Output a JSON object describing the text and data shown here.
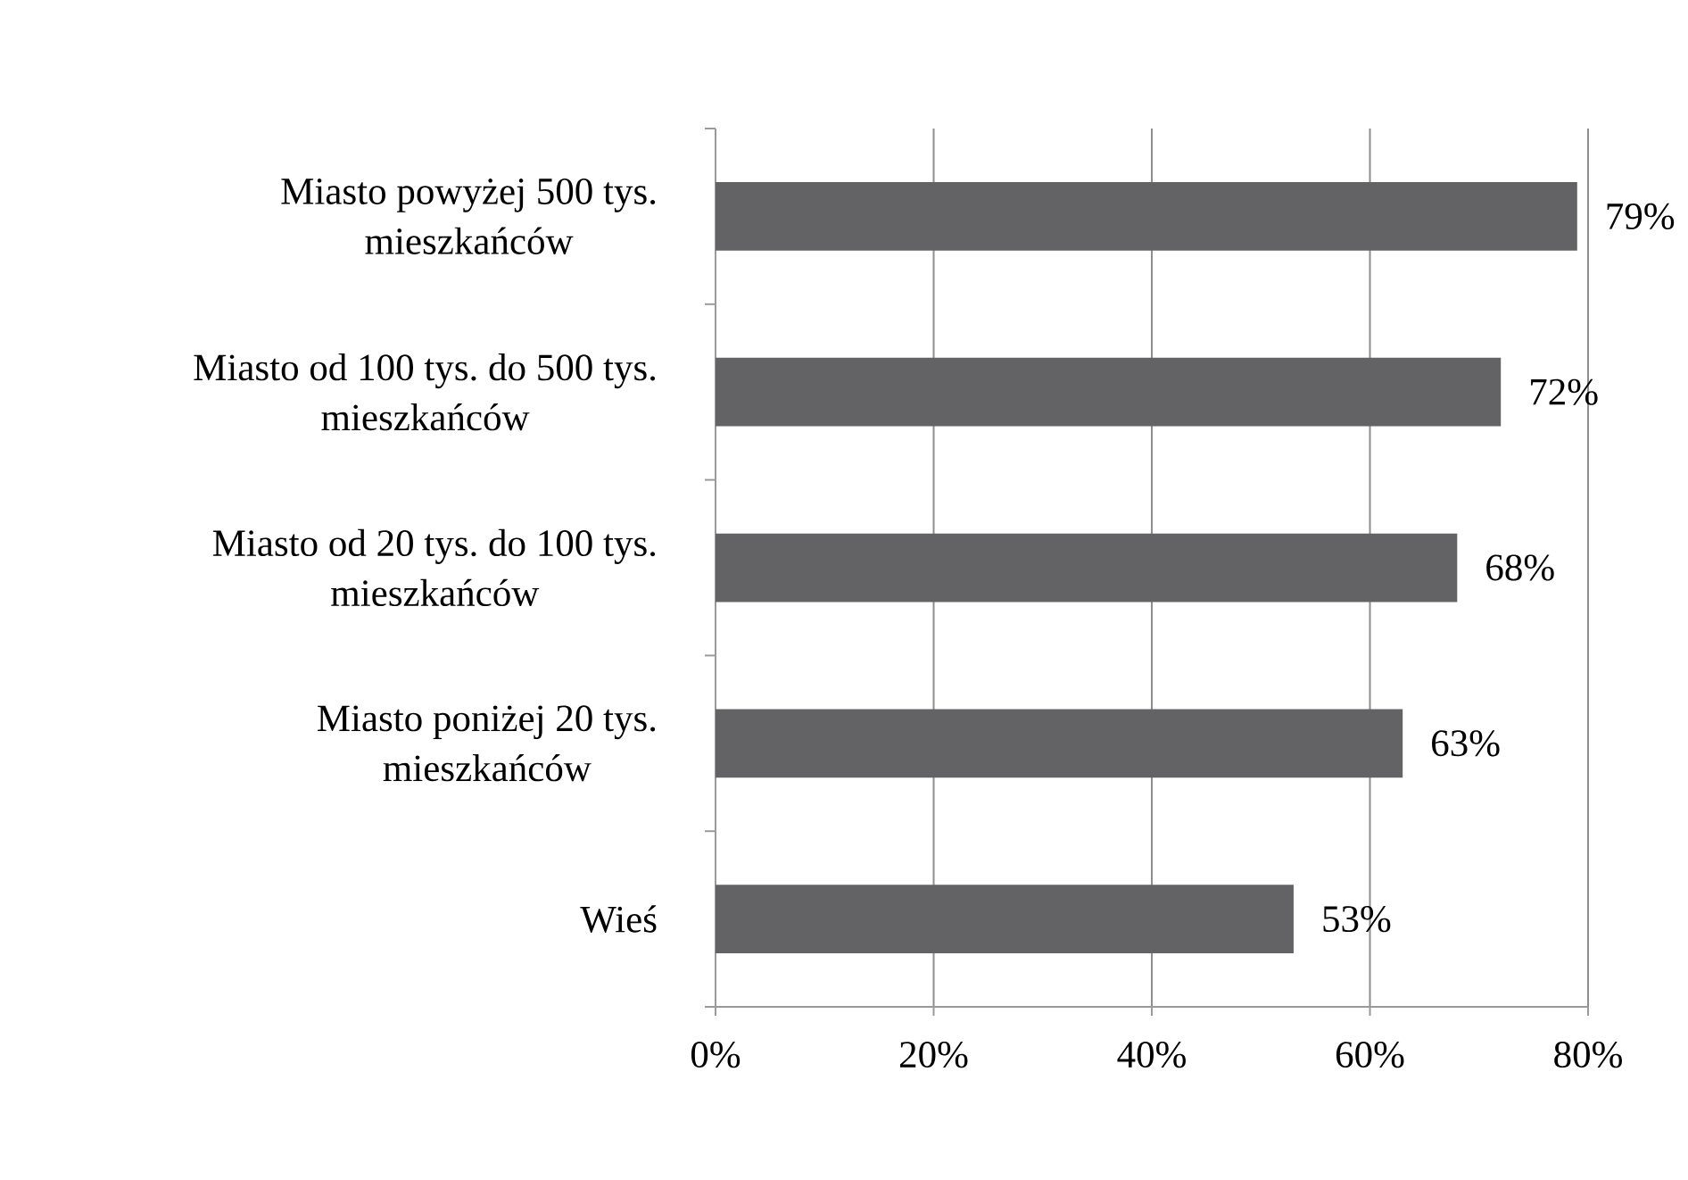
{
  "chart_data": {
    "type": "bar",
    "orientation": "horizontal",
    "categories": [
      "Miasto powyżej 500 tys. mieszkańców",
      "Miasto od 100 tys. do 500 tys. mieszkańców",
      "Miasto od 20 tys. do 100 tys. mieszkańców",
      "Miasto poniżej 20 tys. mieszkańców",
      "Wieś"
    ],
    "values": [
      79,
      72,
      68,
      63,
      53
    ],
    "color": "#636365",
    "value_labels": [
      "79%",
      "72%",
      "68%",
      "63%",
      "53%"
    ],
    "xlim": [
      0,
      80
    ],
    "xticks": [
      {
        "value": 0,
        "label": "0%"
      },
      {
        "value": 20,
        "label": "20%"
      },
      {
        "value": 40,
        "label": "40%"
      },
      {
        "value": 60,
        "label": "60%"
      },
      {
        "value": 80,
        "label": "80%"
      }
    ],
    "grid": "x"
  }
}
